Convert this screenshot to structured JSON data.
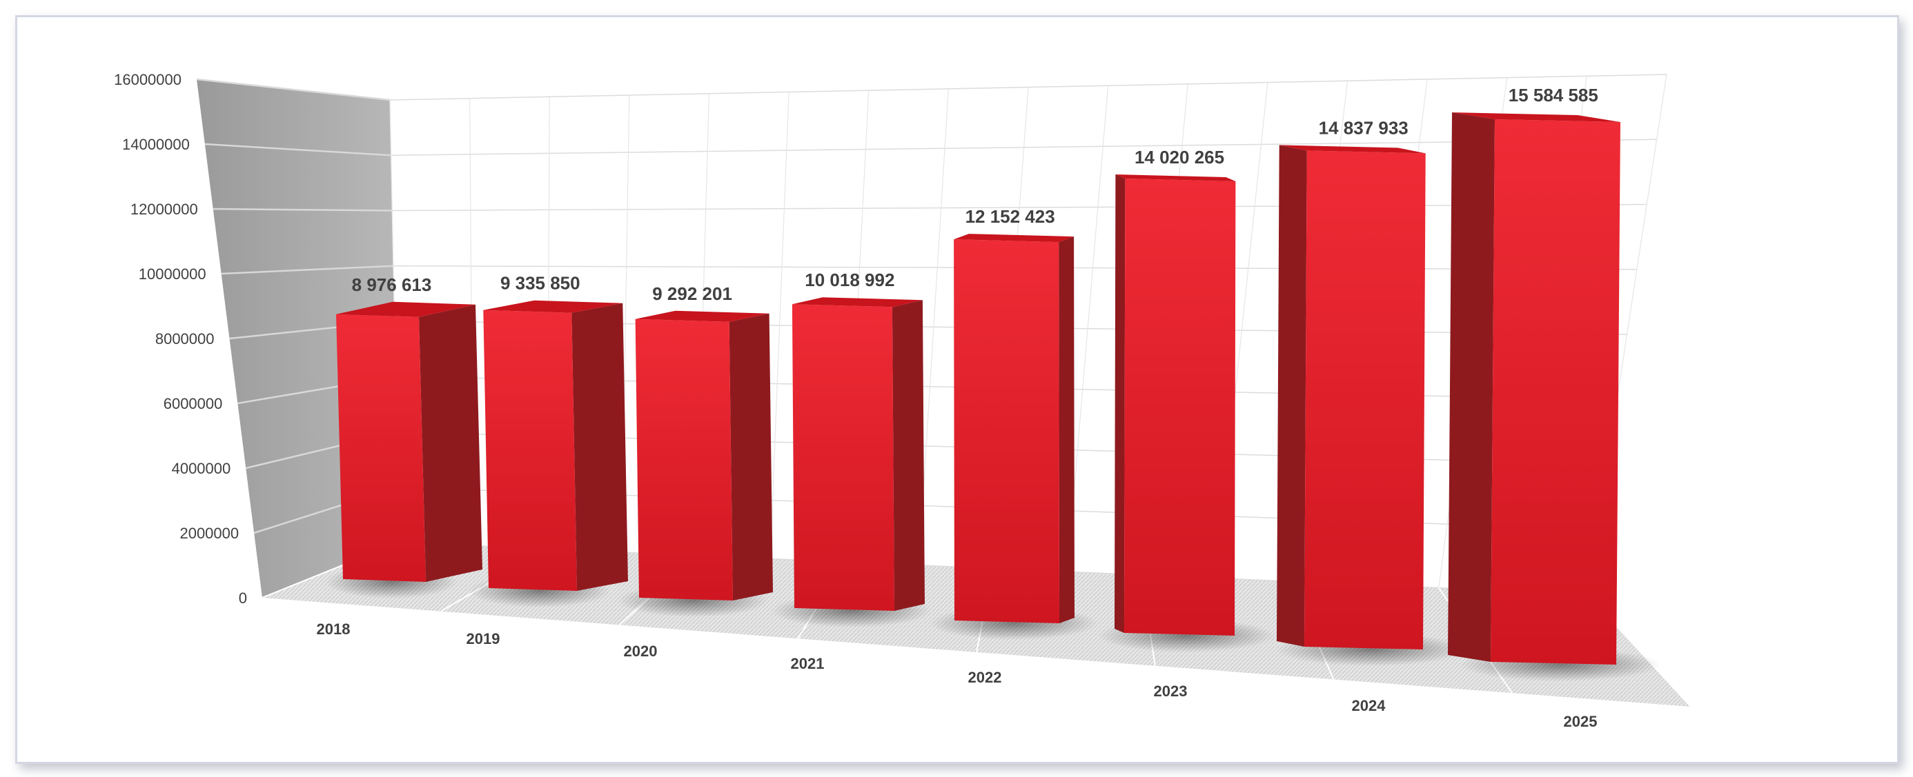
{
  "chart_data": {
    "type": "bar",
    "style": "3d-column",
    "categories": [
      "2018",
      "2019",
      "2020",
      "2021",
      "2022",
      "2023",
      "2024",
      "2025"
    ],
    "values": [
      8976613,
      9335850,
      9292201,
      10018992,
      12152423,
      14020265,
      14837933,
      15584585
    ],
    "data_labels": [
      "8 976 613",
      "9 335 850",
      "9 292 201",
      "10 018 992",
      "12 152 423",
      "14 020 265",
      "14 837 933",
      "15 584 585"
    ],
    "y_ticks": [
      "0",
      "2000000",
      "4000000",
      "6000000",
      "8000000",
      "10000000",
      "12000000",
      "14000000",
      "16000000"
    ],
    "ylim": [
      0,
      16000000
    ],
    "title": "",
    "xlabel": "",
    "ylabel": "",
    "grid": true,
    "legend": "none",
    "colors": {
      "bar_front": "#e41f2b",
      "bar_side": "#8e1a1e",
      "bar_top": "#c8141d",
      "wall": "#a6a6a6",
      "grid": "#d9d9d9"
    }
  }
}
